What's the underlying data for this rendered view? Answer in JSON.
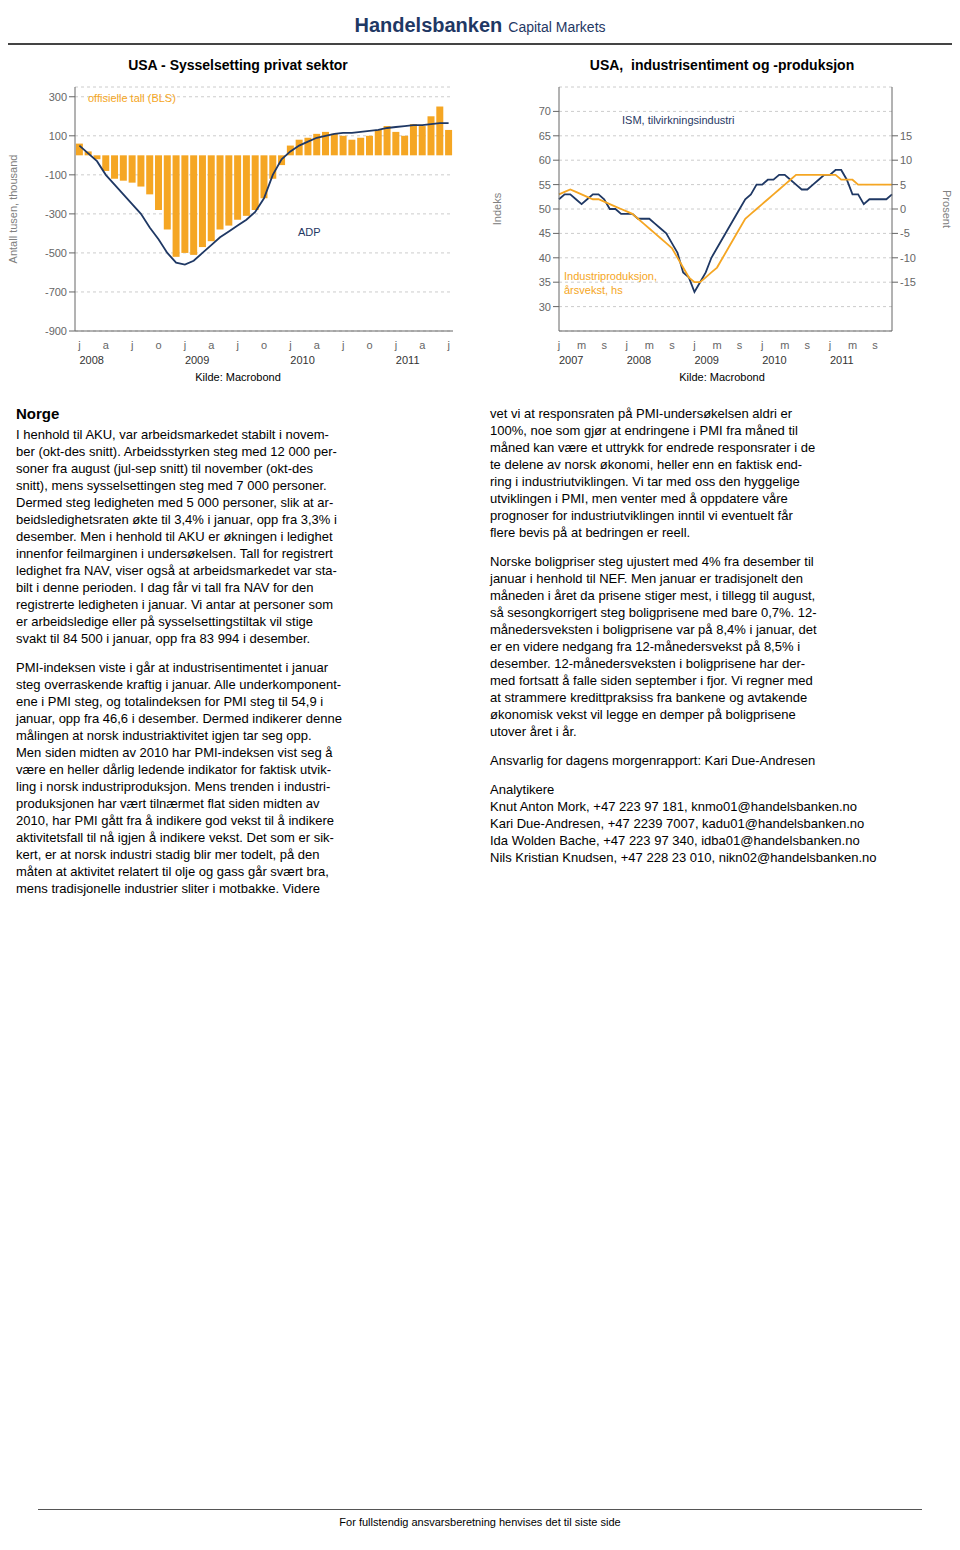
{
  "header": {
    "title": "Handelsbanken",
    "subtitle": "Capital Markets"
  },
  "chart_data": [
    {
      "type": "bar",
      "title": "USA - Sysselsetting privat sektor",
      "ylabel": "Antall tusen, thousand",
      "source": "Kilde: Macrobond",
      "categories": [
        "j",
        null,
        null,
        "a",
        null,
        null,
        "j",
        null,
        null,
        "o",
        null,
        null,
        "j",
        null,
        null,
        "a",
        null,
        null,
        "j",
        null,
        null,
        "o",
        null,
        null,
        "j",
        null,
        null,
        "a",
        null,
        null,
        "j",
        null,
        null,
        "o",
        null,
        null,
        "j",
        null,
        null,
        "a",
        null,
        null,
        "j"
      ],
      "year_labels": [
        "2008",
        null,
        null,
        null,
        null,
        null,
        null,
        null,
        null,
        null,
        null,
        null,
        "2009",
        null,
        null,
        null,
        null,
        null,
        null,
        null,
        null,
        null,
        null,
        null,
        "2010",
        null,
        null,
        null,
        null,
        null,
        null,
        null,
        null,
        null,
        null,
        null,
        "2011",
        null,
        null,
        null,
        null,
        null,
        null
      ],
      "series": [
        {
          "name": "offisielle tall (BLS)",
          "type": "bar",
          "color": "#F5A623",
          "values": [
            60,
            20,
            -20,
            -80,
            -120,
            -130,
            -140,
            -160,
            -200,
            -280,
            -380,
            -520,
            -500,
            -510,
            -470,
            -440,
            -380,
            -360,
            -330,
            -310,
            -280,
            -220,
            -120,
            -50,
            50,
            80,
            90,
            110,
            120,
            110,
            100,
            80,
            90,
            100,
            130,
            150,
            120,
            100,
            160,
            150,
            200,
            250,
            130
          ]
        },
        {
          "name": "ADP",
          "type": "line",
          "color": "#1F3864",
          "values": [
            50,
            10,
            -30,
            -100,
            -150,
            -200,
            -250,
            -300,
            -370,
            -430,
            -500,
            -550,
            -560,
            -540,
            -500,
            -460,
            -420,
            -390,
            -360,
            -330,
            -290,
            -220,
            -100,
            -20,
            20,
            50,
            70,
            90,
            100,
            110,
            115,
            115,
            120,
            125,
            130,
            140,
            145,
            150,
            155,
            155,
            160,
            165,
            165
          ]
        }
      ],
      "ylim": [
        -900,
        350
      ],
      "yticks": [
        300,
        100,
        -100,
        -300,
        -500,
        -700,
        -900
      ],
      "grid": true
    },
    {
      "type": "line",
      "title": "USA,  industrisentiment og -produksjon",
      "ylabel": "Indeks",
      "y2label": "Prosent",
      "source": "Kilde: Macrobond",
      "categories": [
        "j",
        null,
        null,
        null,
        "m",
        null,
        null,
        null,
        "s",
        null,
        null,
        null,
        "j",
        null,
        null,
        null,
        "m",
        null,
        null,
        null,
        "s",
        null,
        null,
        null,
        "j",
        null,
        null,
        null,
        "m",
        null,
        null,
        null,
        "s",
        null,
        null,
        null,
        "j",
        null,
        null,
        null,
        "m",
        null,
        null,
        null,
        "s",
        null,
        null,
        null,
        "j",
        null,
        null,
        null,
        "m",
        null,
        null,
        null,
        "s",
        null,
        null,
        null
      ],
      "year_labels": [
        "2007",
        null,
        null,
        null,
        null,
        null,
        null,
        null,
        null,
        null,
        null,
        null,
        "2008",
        null,
        null,
        null,
        null,
        null,
        null,
        null,
        null,
        null,
        null,
        null,
        "2009",
        null,
        null,
        null,
        null,
        null,
        null,
        null,
        null,
        null,
        null,
        null,
        "2010",
        null,
        null,
        null,
        null,
        null,
        null,
        null,
        null,
        null,
        null,
        null,
        "2011",
        null,
        null,
        null,
        null,
        null,
        null,
        null,
        null,
        null,
        null,
        null
      ],
      "series": [
        {
          "name": "ISM, tilvirkningsindustri",
          "color": "#1F3864",
          "values": [
            52,
            53,
            53,
            52,
            51,
            52,
            53,
            53,
            52,
            50,
            50,
            49,
            49,
            49,
            48,
            48,
            48,
            47,
            46,
            45,
            43,
            41,
            37,
            36,
            33,
            35,
            37,
            40,
            42,
            44,
            46,
            48,
            50,
            52,
            53,
            55,
            55,
            56,
            56,
            57,
            57,
            56,
            55,
            54,
            54,
            55,
            56,
            57,
            57,
            58,
            58,
            56,
            53,
            53,
            51,
            52,
            52,
            52,
            52,
            53
          ]
        },
        {
          "name": "Industriproduksjon,\nårsvekst, hs",
          "color": "#F5A623",
          "axis": "y2",
          "values": [
            3,
            3.5,
            4,
            3.5,
            3,
            2.5,
            2,
            2,
            1.5,
            1,
            0.5,
            0,
            -0.5,
            -1,
            -2,
            -3,
            -4,
            -5,
            -6,
            -7,
            -8,
            -10,
            -12,
            -14,
            -15,
            -15,
            -14,
            -13,
            -12,
            -10,
            -8,
            -6,
            -4,
            -2,
            -1,
            0,
            1,
            2,
            3,
            4,
            5,
            6,
            7,
            7,
            7,
            7,
            7,
            7,
            7,
            7,
            6,
            6,
            6,
            5,
            5,
            5,
            5,
            5,
            5,
            5
          ]
        }
      ],
      "ylim": [
        25,
        75
      ],
      "yticks": [
        70,
        65,
        60,
        55,
        50,
        45,
        40,
        35,
        30
      ],
      "y2lim": [
        -25,
        25
      ],
      "y2ticks": [
        15,
        10,
        5,
        0,
        -5,
        -10,
        -15
      ],
      "grid": true
    }
  ],
  "body_left": {
    "heading": "Norge",
    "paragraphs": [
      [
        "I henhold til AKU, var arbeidsmarkedet stabilt i novem-",
        "ber (okt-des snitt). Arbeidsstyrken steg med 12 000 per-",
        "soner fra august (jul-sep snitt) til november (okt-des",
        "snitt), mens sysselsettingen steg med 7 000 personer.",
        "Dermed steg ledigheten med 5 000 personer, slik at ar-",
        "beidsledighetsraten økte til 3,4% i januar, opp fra 3,3% i",
        "desember. Men i henhold til AKU er økningen i ledighet",
        "innenfor feilmarginen i undersøkelsen. Tall for registrert",
        "ledighet fra NAV, viser også at arbeidsmarkedet var sta-",
        "bilt i denne perioden. I dag får vi tall fra NAV for den",
        "registrerte ledigheten i januar. Vi antar at personer som",
        "er arbeidsledige eller på sysselsettingstiltak vil stige",
        "svakt til 84 500 i januar, opp fra 83 994 i desember."
      ],
      [
        "PMI-indeksen viste i går at industrisentimentet i januar",
        "steg overraskende kraftig i januar. Alle underkomponent-",
        "ene i PMI steg, og totalindeksen for PMI steg til 54,9 i",
        "januar, opp fra 46,6 i desember. Dermed indikerer denne",
        "målingen at norsk industriaktivitet igjen tar seg opp.",
        "Men siden midten av 2010 har PMI-indeksen vist seg å",
        "være en heller dårlig ledende indikator for faktisk utvik-",
        "ling i norsk industriproduksjon. Mens trenden i industri-",
        "produksjonen har vært tilnærmet flat siden midten av",
        "2010, har PMI gått fra å indikere god vekst til å indikere",
        "aktivitetsfall til nå igjen å indikere vekst. Det som er sik-",
        "kert, er at norsk industri stadig blir mer todelt, på den",
        "måten at aktivitet relatert til olje og gass går svært bra,",
        "mens tradisjonelle industrier sliter i motbakke. Videre"
      ]
    ]
  },
  "body_right": {
    "paragraphs": [
      [
        "vet vi at responsraten på PMI-undersøkelsen aldri er",
        "100%, noe som gjør at endringene i PMI fra måned til",
        "måned kan være et uttrykk for endrede responsrater i de",
        "te delene av norsk økonomi, heller enn en faktisk end-",
        "ring i industriutviklingen. Vi tar med oss den hyggelige",
        "utviklingen i PMI, men venter med å oppdatere våre",
        "prognoser for industriutviklingen inntil vi eventuelt får",
        "flere bevis på at bedringen er reell."
      ],
      [
        "Norske boligpriser steg ujustert med 4% fra desember til",
        "januar i henhold til NEF. Men januar er tradisjonelt den",
        "måneden i året da prisene stiger mest, i tillegg til august,",
        "så sesongkorrigert steg boligprisene med bare 0,7%. 12-",
        "månedersveksten i boligprisene var på 8,4% i januar, det",
        "er en videre nedgang fra 12-månedersvekst på 8,5% i",
        "desember. 12-månedersveksten i boligprisene har der-",
        "med fortsatt å falle siden september i fjor. Vi regner med",
        "at strammere kredittpraksiss fra bankene og avtakende",
        "økonomisk vekst vil legge en demper på boligprisene",
        "utover året i år."
      ],
      [
        "Ansvarlig for dagens morgenrapport: Kari Due-Andresen"
      ],
      [
        "Analytikere",
        "Knut Anton Mork, +47 223 97 181, knmo01@handelsbanken.no",
        "Kari Due-Andresen, +47 2239 7007, kadu01@handelsbanken.no",
        "Ida Wolden Bache, +47 223 97 340, idba01@handelsbanken.no",
        "Nils Kristian Knudsen, +47 228 23 010, nikn02@handelsbanken.no"
      ]
    ]
  },
  "footer": "For fullstendig ansvarsberetning henvises det til siste side"
}
